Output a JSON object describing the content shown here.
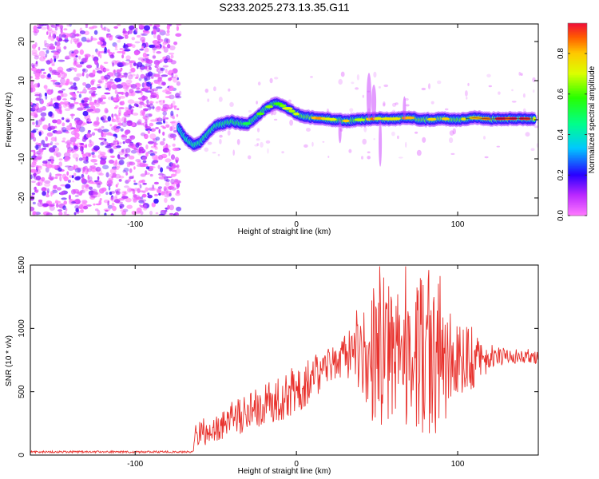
{
  "title": "S233.2025.273.13.35.G11",
  "chart_data": [
    {
      "type": "heatmap",
      "title": "S233.2025.273.13.35.G11",
      "xlabel": "Height of straight line (km)",
      "ylabel": "Frequency (Hz)",
      "xlim": [
        -165,
        150
      ],
      "ylim": [
        -24.5,
        24.5
      ],
      "x_ticks": [
        -100,
        0,
        100
      ],
      "y_ticks": [
        -20,
        -10,
        0,
        10,
        20
      ],
      "colorbar": {
        "label": "Normalized spectral amplitude",
        "range": [
          0.0,
          0.95
        ],
        "ticks": [
          0.0,
          0.2,
          0.4,
          0.6,
          0.8
        ],
        "colormap": "rainbow (magenta-blue-cyan-green-yellow-red)"
      },
      "noise_region_x": [
        -165,
        -73
      ],
      "ridge": {
        "x": [
          -73,
          -70,
          -67,
          -63,
          -60,
          -55,
          -50,
          -45,
          -40,
          -35,
          -30,
          -25,
          -20,
          -15,
          -12,
          -8,
          -4,
          0,
          5,
          10,
          20,
          30,
          40,
          50,
          60,
          70,
          80,
          90,
          100,
          110,
          120,
          130,
          140,
          148
        ],
        "freq": [
          -2,
          -4,
          -5.5,
          -6.5,
          -6,
          -3.5,
          -1.5,
          -1,
          -0.5,
          -1,
          -1,
          0.5,
          2.5,
          3.8,
          4.2,
          3.5,
          2.5,
          1.5,
          0.8,
          0.5,
          0.2,
          -0.3,
          0,
          0.3,
          0.2,
          0.5,
          0,
          0.3,
          0,
          0.5,
          0.2,
          0.3,
          0.3,
          0.2
        ],
        "amplitude": [
          0.25,
          0.35,
          0.4,
          0.45,
          0.45,
          0.5,
          0.45,
          0.5,
          0.55,
          0.55,
          0.5,
          0.55,
          0.55,
          0.6,
          0.65,
          0.6,
          0.65,
          0.7,
          0.75,
          0.8,
          0.7,
          0.75,
          0.7,
          0.8,
          0.85,
          0.75,
          0.8,
          0.85,
          0.75,
          0.8,
          0.85,
          0.92,
          0.95,
          0.95
        ]
      }
    },
    {
      "type": "line",
      "xlabel": "Height of straight line (km)",
      "ylabel": "SNR (10 * v/v)",
      "xlim": [
        -165,
        150
      ],
      "ylim": [
        0,
        1500
      ],
      "x_ticks": [
        -100,
        0,
        100
      ],
      "y_ticks": [
        0,
        500,
        1000,
        1500
      ],
      "line_color": "#e8322d",
      "series": [
        {
          "envelope_x": [
            -165,
            -64,
            -62,
            -50,
            -40,
            -30,
            -20,
            -10,
            0,
            10,
            20,
            30,
            40,
            45,
            50,
            55,
            60,
            70,
            80,
            85,
            90,
            100,
            110,
            120,
            130,
            140,
            150
          ],
          "envelope_mean": [
            25,
            25,
            180,
            220,
            300,
            330,
            390,
            450,
            520,
            620,
            690,
            780,
            800,
            780,
            800,
            820,
            800,
            780,
            800,
            800,
            800,
            760,
            760,
            780,
            780,
            780,
            780
          ],
          "envelope_amplitude": [
            8,
            8,
            120,
            120,
            140,
            160,
            170,
            180,
            200,
            180,
            170,
            180,
            300,
            500,
            550,
            600,
            550,
            600,
            650,
            700,
            600,
            300,
            250,
            100,
            60,
            60,
            60
          ]
        }
      ]
    }
  ]
}
